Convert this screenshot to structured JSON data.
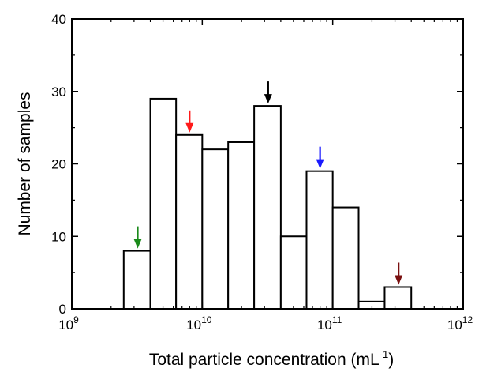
{
  "chart_data": {
    "type": "bar",
    "xlabel": "Total particle concentration (mL",
    "xlabel_sup": "-1",
    "xlabel_close": ")",
    "ylabel": "Number of samples",
    "x_scale": "log",
    "xlim": [
      1000000000,
      1000000000000
    ],
    "ylim": [
      0,
      40
    ],
    "y_ticks": [
      0,
      10,
      20,
      30,
      40
    ],
    "x_ticks": [
      {
        "base": "10",
        "exp": "9",
        "value": 1000000000
      },
      {
        "base": "10",
        "exp": "10",
        "value": 10000000000
      },
      {
        "base": "10",
        "exp": "11",
        "value": 100000000000
      },
      {
        "base": "10",
        "exp": "12",
        "value": 1000000000000
      }
    ],
    "bins": [
      {
        "from": 2500000000,
        "to": 4000000000,
        "value": 8
      },
      {
        "from": 4000000000,
        "to": 6300000000,
        "value": 29
      },
      {
        "from": 6300000000,
        "to": 10000000000,
        "value": 24
      },
      {
        "from": 10000000000,
        "to": 15800000000,
        "value": 22
      },
      {
        "from": 15800000000,
        "to": 25000000000,
        "value": 23
      },
      {
        "from": 25000000000,
        "to": 40000000000,
        "value": 28
      },
      {
        "from": 40000000000,
        "to": 63000000000,
        "value": 10
      },
      {
        "from": 63000000000,
        "to": 100000000000,
        "value": 19
      },
      {
        "from": 100000000000,
        "to": 158000000000,
        "value": 14
      },
      {
        "from": 158000000000,
        "to": 250000000000,
        "value": 1
      },
      {
        "from": 250000000000,
        "to": 400000000000,
        "value": 3
      }
    ],
    "arrows": [
      {
        "x": 3200000000,
        "color": "#1a8a1a",
        "bin": 0
      },
      {
        "x": 8000000000,
        "color": "#ff1a1a",
        "bin": 2
      },
      {
        "x": 32000000000,
        "color": "#000000",
        "bin": 5
      },
      {
        "x": 80000000000,
        "color": "#1a1aff",
        "bin": 7
      },
      {
        "x": 320000000000,
        "color": "#7a1010",
        "bin": 10
      }
    ],
    "grid": false,
    "bar_fill": "#ffffff",
    "bar_stroke": "#000000"
  }
}
